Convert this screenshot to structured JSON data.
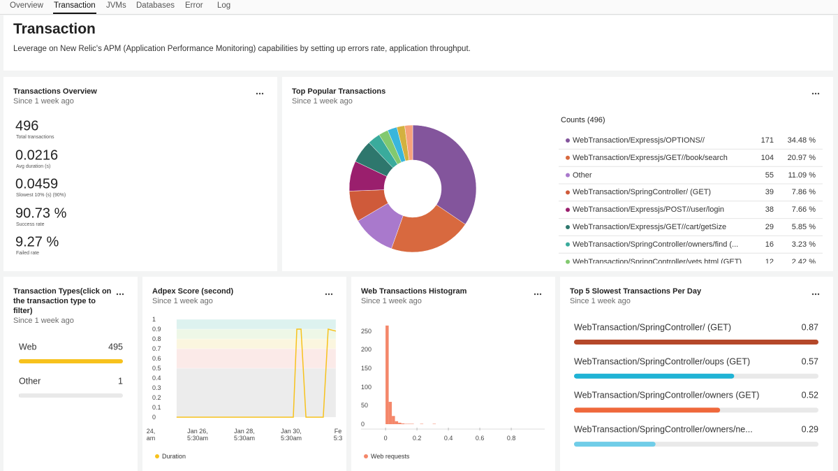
{
  "tabs": {
    "items": [
      "Overview",
      "Transaction",
      "JVMs",
      "Databases",
      "Error",
      "Log"
    ],
    "active": 1
  },
  "header": {
    "title": "Transaction",
    "description": "Leverage on New Relic's APM (Application Performance Monitoring) capabilities by setting up errors rate, application throughput."
  },
  "overview": {
    "title": "Transactions Overview",
    "subtitle": "Since 1 week ago",
    "metrics": [
      {
        "value": "496",
        "label": "Total transactions"
      },
      {
        "value": "0.0216",
        "label": "Avg duration (s)"
      },
      {
        "value": "0.0459",
        "label": "Slowest 10% (s) (90%)"
      },
      {
        "value": "90.73 %",
        "label": "Success rate"
      },
      {
        "value": "9.27 %",
        "label": "Failed rate"
      }
    ]
  },
  "chart_data": [
    {
      "type": "pie",
      "title": "Top Popular Transactions",
      "subtitle": "Since 1 week ago",
      "legend_title": "Counts (496)",
      "categories": [
        "WebTransaction/Expressjs/OPTIONS//",
        "WebTransaction/Expressjs/GET//book/search",
        "Other",
        "WebTransaction/SpringController/ (GET)",
        "WebTransaction/Expressjs/POST//user/login",
        "WebTransaction/Expressjs/GET//cart/getSize",
        "WebTransaction/SpringController/owners/find (...",
        "WebTransaction/SpringController/vets.html (GET)",
        null,
        null,
        null
      ],
      "values": [
        171,
        104,
        55,
        39,
        38,
        29,
        16,
        12,
        12,
        10,
        10
      ],
      "shares": [
        "34.48 %",
        "20.97 %",
        "11.09 %",
        "7.86 %",
        "7.66 %",
        "5.85 %",
        "3.23 %",
        "2.42 %",
        null,
        null,
        null
      ],
      "colors": [
        "#83559c",
        "#d8693f",
        "#a979cc",
        "#cf5a3a",
        "#9a1f6d",
        "#2e776d",
        "#3aab9c",
        "#82c96f",
        "#39b6dc",
        "#d3b13f",
        "#f7a27b"
      ]
    },
    {
      "type": "hbar",
      "title": "Transaction Types(click on the transaction type to filter)",
      "subtitle": "Since 1 week ago",
      "categories": [
        "Web",
        "Other"
      ],
      "values": [
        495,
        1
      ],
      "colors": [
        "#f7c21d",
        "#c4c4c4"
      ],
      "xlim": [
        0,
        495
      ]
    },
    {
      "type": "line",
      "title": "Adpex Score (second)",
      "subtitle": "Since 1 week ago",
      "x": [
        25.33,
        30.32,
        30.47,
        30.65,
        30.86,
        31.6,
        31.81,
        32.14
      ],
      "series": [
        {
          "name": "Duration",
          "color": "#f7c21d",
          "values": [
            0,
            0,
            0.9,
            0.9,
            0,
            0,
            0.9,
            0.88
          ]
        }
      ],
      "xlim": [
        24.29,
        32.14
      ],
      "ylim": [
        0,
        1
      ],
      "xticks": [
        {
          "value": 24.23,
          "label": "24,\nam"
        },
        {
          "value": 26.23,
          "label": "Jan 26,\n5:30am"
        },
        {
          "value": 28.23,
          "label": "Jan 28,\n5:30am"
        },
        {
          "value": 30.23,
          "label": "Jan 30,\n5:30am"
        },
        {
          "value": 32.23,
          "label": "Fe\n5:3"
        }
      ],
      "yticks": [
        0,
        0.1,
        0.2,
        0.3,
        0.4,
        0.5,
        0.6,
        0.7,
        0.8,
        0.9,
        1
      ],
      "bands": [
        {
          "from": 0,
          "to": 0.5,
          "color": "#ececec"
        },
        {
          "from": 0.5,
          "to": 0.7,
          "color": "#fbeae8"
        },
        {
          "from": 0.7,
          "to": 0.8,
          "color": "#fbf6df"
        },
        {
          "from": 0.8,
          "to": 0.9,
          "color": "#eef7e7"
        },
        {
          "from": 0.9,
          "to": 1,
          "color": "#ddf2ef"
        }
      ]
    },
    {
      "type": "histogram",
      "title": "Web Transactions Histogram",
      "subtitle": "Since 1 week ago",
      "bins": [
        0,
        0.02,
        0.04,
        0.06,
        0.08,
        0.1,
        0.12,
        0.14,
        0.16,
        0.18,
        0.2,
        0.22,
        0.24,
        0.26,
        0.28,
        0.3,
        0.32,
        0.34,
        0.36,
        0.38,
        0.4,
        0.42,
        0.44,
        0.46,
        0.48,
        0.5,
        0.52,
        0.54,
        0.56,
        0.58,
        0.6,
        0.62,
        0.64,
        0.66,
        0.68,
        0.7,
        0.72,
        0.74,
        0.76,
        0.78,
        0.8,
        0.82,
        0.84,
        0.86,
        0.88,
        0.9,
        0.92,
        0.94,
        0.96,
        0.98,
        1
      ],
      "series": [
        {
          "name": "Web requests",
          "color": "#f4876a",
          "values": [
            265,
            60,
            22,
            8,
            4,
            2,
            1,
            1,
            1,
            0,
            0,
            1,
            0,
            0,
            0,
            1,
            0,
            0,
            0,
            0,
            0,
            0,
            0,
            0,
            0,
            0,
            0,
            0,
            0,
            0,
            0,
            0,
            0,
            0,
            0,
            0,
            0,
            0,
            0,
            0,
            0,
            0,
            0,
            0,
            0,
            0,
            0,
            0,
            0,
            0
          ]
        }
      ],
      "xlim": [
        -0.156,
        1.013
      ],
      "ylim": [
        0,
        276
      ],
      "xticks": [
        0,
        0.2,
        0.4,
        0.6,
        0.8
      ],
      "yticks": [
        0,
        50,
        100,
        150,
        200,
        250
      ]
    },
    {
      "type": "hbar",
      "title": "Top 5 Slowest Transactions Per Day",
      "subtitle": "Since 1 week ago",
      "categories": [
        "WebTransaction/SpringController/ (GET)",
        "WebTransaction/SpringController/oups (GET)",
        "WebTransaction/SpringController/owners (GET)",
        "WebTransaction/SpringController/owners/ne..."
      ],
      "values": [
        0.87,
        0.57,
        0.52,
        0.29
      ],
      "colors": [
        "#b5482a",
        "#1fb3d5",
        "#ef683b",
        "#70cde8"
      ],
      "xlim": [
        0,
        0.87
      ]
    }
  ]
}
